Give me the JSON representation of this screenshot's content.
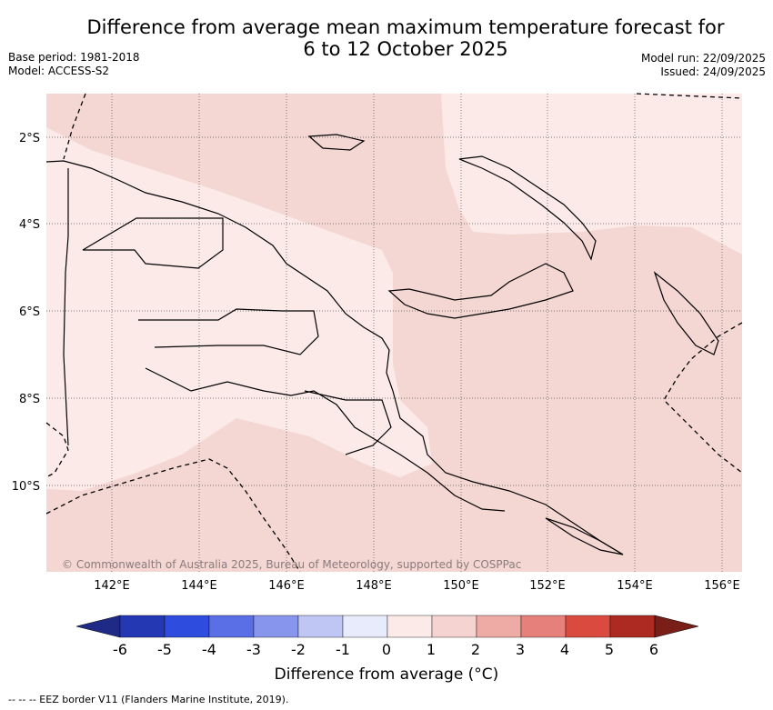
{
  "title_line1": "Difference from average mean maximum temperature forecast for",
  "title_line2": "6 to 12 October 2025",
  "base_period": "Base period: 1981-2018",
  "model": "Model: ACCESS-S2",
  "model_run": "Model run: 22/09/2025",
  "issued": "Issued: 24/09/2025",
  "attribution": "© Commonwealth of Australia 2025, Bureau of Meteorology, supported by COSPPac",
  "footnote": "--  --  -- EEZ border V11 (Flanders Marine Institute, 2019).",
  "lat_labels": [
    "2°S",
    "4°S",
    "6°S",
    "8°S",
    "10°S"
  ],
  "lon_labels": [
    "142°E",
    "144°E",
    "146°E",
    "148°E",
    "150°E",
    "152°E",
    "154°E",
    "156°E"
  ],
  "colorbar": {
    "title": "Difference from average (°C)",
    "ticks": [
      "-6",
      "-5",
      "-4",
      "-3",
      "-2",
      "-1",
      "0",
      "1",
      "2",
      "3",
      "4",
      "5",
      "6"
    ],
    "colors": [
      "#1f2a87",
      "#2438b3",
      "#2e4ddf",
      "#5a6fe6",
      "#8895ec",
      "#c0c6f4",
      "#e8ebfb",
      "#fbeae8",
      "#f4d3d0",
      "#eeaaa4",
      "#e6807a",
      "#db4a3f",
      "#ad2a22",
      "#7a1e18"
    ]
  },
  "map_colors": {
    "land_zone_pale": "#fbeae8",
    "zone_light": "#f4d6d3",
    "coast": "#000000"
  }
}
